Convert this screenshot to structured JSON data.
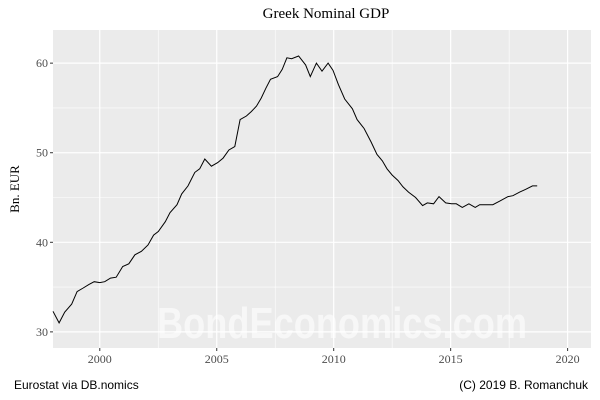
{
  "chart_data": {
    "type": "line",
    "title": "Greek Nominal GDP",
    "xlabel": "",
    "ylabel": "Bn. EUR",
    "xlim": [
      1998.0,
      2021.0
    ],
    "ylim": [
      28.2,
      63.7
    ],
    "x_ticks": [
      2000,
      2005,
      2010,
      2015,
      2020
    ],
    "y_ticks": [
      30,
      40,
      50,
      60
    ],
    "grid": true,
    "background": "#EBEBEB",
    "line_color": "#000000",
    "series": [
      {
        "x": [
          1998.0,
          1998.26,
          1998.5,
          1998.8,
          1999.03,
          1999.29,
          1999.54,
          1999.76,
          2000.0,
          2000.21,
          2000.46,
          2000.7,
          2000.98,
          2001.24,
          2001.5,
          2001.78,
          2002.06,
          2002.3,
          2002.5,
          2002.8,
          2003.0,
          2003.3,
          2003.5,
          2003.77,
          2004.06,
          2004.27,
          2004.49,
          2004.77,
          2005.04,
          2005.27,
          2005.52,
          2005.77,
          2006.0,
          2006.27,
          2006.48,
          2006.7,
          2006.9,
          2007.1,
          2007.3,
          2007.6,
          2007.8,
          2008.0,
          2008.2,
          2008.5,
          2008.8,
          2009.0,
          2009.26,
          2009.5,
          2009.76,
          2009.97,
          2010.2,
          2010.47,
          2010.8,
          2011.0,
          2011.3,
          2011.6,
          2011.85,
          2012.08,
          2012.28,
          2012.5,
          2012.75,
          2012.96,
          2013.2,
          2013.5,
          2013.8,
          2014.0,
          2014.27,
          2014.5,
          2014.79,
          2015.03,
          2015.24,
          2015.5,
          2015.78,
          2016.05,
          2016.24,
          2016.8,
          2017.1,
          2017.45,
          2017.66,
          2017.95,
          2018.2,
          2018.5,
          2018.7
        ],
        "y": [
          32.3,
          31.0,
          32.2,
          33.1,
          34.5,
          34.9,
          35.3,
          35.6,
          35.5,
          35.6,
          36.0,
          36.1,
          37.3,
          37.6,
          38.6,
          39.0,
          39.7,
          40.8,
          41.2,
          42.3,
          43.3,
          44.2,
          45.4,
          46.3,
          47.8,
          48.2,
          49.3,
          48.5,
          48.9,
          49.4,
          50.3,
          50.7,
          53.7,
          54.1,
          54.6,
          55.2,
          56.1,
          57.2,
          58.2,
          58.5,
          59.3,
          60.6,
          60.5,
          60.8,
          59.8,
          58.5,
          60.0,
          59.1,
          60.0,
          59.2,
          57.6,
          56.0,
          54.9,
          53.7,
          52.7,
          51.2,
          49.8,
          49.1,
          48.2,
          47.5,
          46.9,
          46.2,
          45.6,
          45.0,
          44.1,
          44.4,
          44.3,
          45.1,
          44.4,
          44.3,
          44.3,
          43.9,
          44.3,
          43.9,
          44.2,
          44.2,
          44.6,
          45.1,
          45.2,
          45.6,
          45.9,
          46.3,
          46.3
        ]
      }
    ]
  },
  "watermark": "BondEconomics.com",
  "caption_left": "Eurostat via DB.nomics",
  "caption_right": "(C) 2019 B. Romanchuk"
}
